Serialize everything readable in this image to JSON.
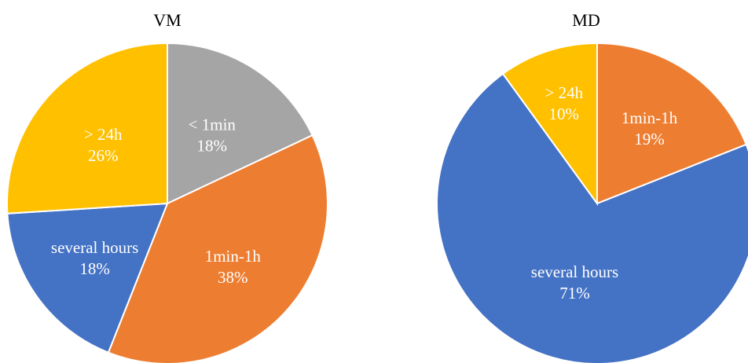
{
  "chart_data": [
    {
      "type": "pie",
      "title": "VM",
      "start_angle_deg": 0,
      "direction": "clockwise",
      "categories": [
        "< 1min",
        "1min-1h",
        "several hours",
        "> 24h"
      ],
      "values": [
        18,
        38,
        18,
        26
      ],
      "labels": [
        "18%",
        "38%",
        "18%",
        "26%"
      ],
      "colors": [
        "#A5A5A5",
        "#ED7D31",
        "#4472C4",
        "#FFC000"
      ]
    },
    {
      "type": "pie",
      "title": "MD",
      "start_angle_deg": 0,
      "direction": "clockwise",
      "categories": [
        "1min-1h",
        "several hours",
        "> 24h"
      ],
      "values": [
        19,
        71,
        10
      ],
      "labels": [
        "19%",
        "71%",
        "10%"
      ],
      "colors": [
        "#ED7D31",
        "#4472C4",
        "#FFC000"
      ]
    }
  ]
}
